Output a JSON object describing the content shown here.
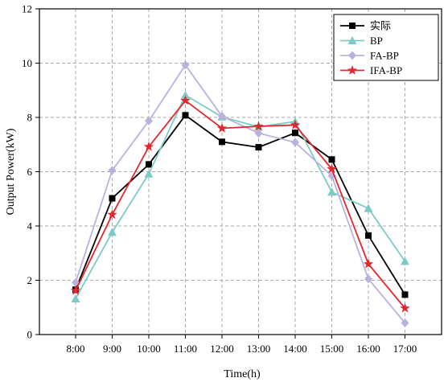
{
  "chart_data": {
    "type": "line",
    "title": "",
    "xlabel": "Time(h)",
    "ylabel": "Output Power(kW)",
    "categories": [
      "8:00",
      "9:00",
      "10:00",
      "11:00",
      "12:00",
      "13:00",
      "14:00",
      "15:00",
      "16:00",
      "17:00"
    ],
    "ylim": [
      0,
      12
    ],
    "yticks": [
      0,
      2,
      4,
      6,
      8,
      10,
      12
    ],
    "grid": true,
    "legend_position": "top-right",
    "series": [
      {
        "name": "实际",
        "color": "#000000",
        "marker": "square",
        "values": [
          1.65,
          5.02,
          6.27,
          8.08,
          7.1,
          6.9,
          7.43,
          6.45,
          3.65,
          1.47
        ]
      },
      {
        "name": "BP",
        "color": "#7ecbc4",
        "marker": "triangle",
        "values": [
          1.32,
          3.77,
          5.92,
          8.82,
          8.02,
          7.65,
          7.85,
          5.25,
          4.65,
          2.7
        ]
      },
      {
        "name": "FA-BP",
        "color": "#b9b2df",
        "marker": "diamond",
        "values": [
          1.92,
          6.05,
          7.87,
          9.93,
          8.04,
          7.42,
          7.08,
          5.85,
          2.05,
          0.43
        ]
      },
      {
        "name": "IFA-BP",
        "color": "#e0282e",
        "marker": "star",
        "values": [
          1.62,
          4.42,
          6.92,
          8.62,
          7.6,
          7.67,
          7.72,
          6.1,
          2.6,
          0.97
        ]
      }
    ]
  }
}
